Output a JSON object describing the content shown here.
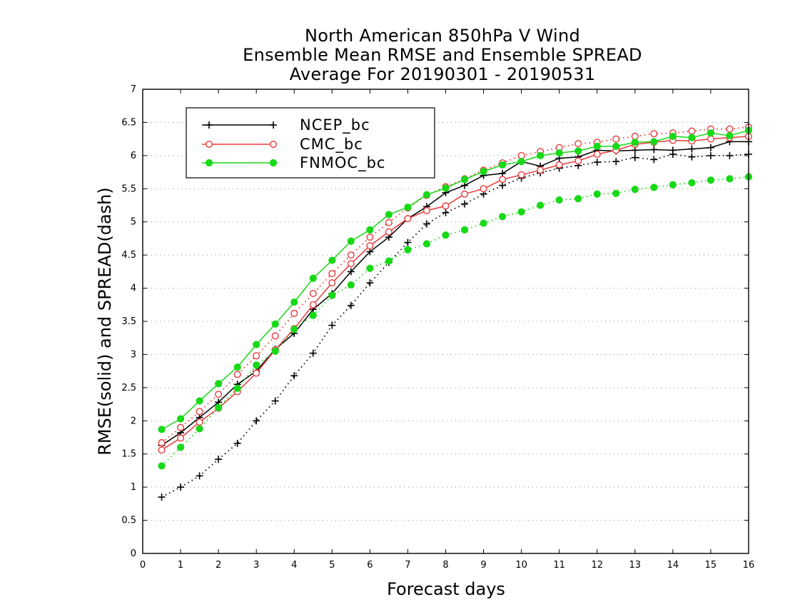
{
  "chart_data": {
    "type": "line",
    "title": [
      "North American 850hPa V Wind",
      "Ensemble Mean RMSE and Ensemble SPREAD",
      "Average For 20190301 - 20190531"
    ],
    "xlabel": "Forecast days",
    "ylabel": "RMSE(solid) and SPREAD(dash)",
    "xlim": [
      0,
      16
    ],
    "ylim": [
      0,
      7
    ],
    "x_ticks": [
      0,
      1,
      2,
      3,
      4,
      5,
      6,
      7,
      8,
      9,
      10,
      11,
      12,
      13,
      14,
      15,
      16
    ],
    "x_tick_labels": [
      "0",
      "1",
      "2",
      "3",
      "4",
      "5",
      "6",
      "7",
      "8",
      "9",
      "10",
      "11",
      "12",
      "13",
      "14",
      "15",
      "16"
    ],
    "y_ticks": [
      0,
      0.5,
      1,
      1.5,
      2,
      2.5,
      3,
      3.5,
      4,
      4.5,
      5,
      5.5,
      6,
      6.5,
      7
    ],
    "y_tick_labels": [
      "0",
      "0.5",
      "1",
      "1.5",
      "2",
      "2.5",
      "3",
      "3.5",
      "4",
      "4.5",
      "5",
      "5.5",
      "6",
      "6.5",
      "7"
    ],
    "grid": "horizontal dotted",
    "legend_position": "top-left",
    "x": [
      0.5,
      1,
      1.5,
      2,
      2.5,
      3,
      3.5,
      4,
      4.5,
      5,
      5.5,
      6,
      6.5,
      7,
      7.5,
      8,
      8.5,
      9,
      9.5,
      10,
      10.5,
      11,
      11.5,
      12,
      12.5,
      13,
      13.5,
      14,
      14.5,
      15,
      15.5,
      16
    ],
    "series": [
      {
        "name": "NCEP_bc",
        "color": "#000000",
        "marker": "plus",
        "rmse": [
          1.63,
          1.82,
          2.05,
          2.28,
          2.55,
          2.75,
          3.08,
          3.32,
          3.68,
          3.92,
          4.25,
          4.55,
          4.77,
          5.05,
          5.23,
          5.44,
          5.55,
          5.7,
          5.73,
          5.91,
          5.84,
          5.96,
          5.98,
          6.08,
          6.07,
          6.08,
          6.09,
          6.08,
          6.1,
          6.12,
          6.21,
          6.21
        ],
        "spread": [
          0.85,
          1.0,
          1.17,
          1.42,
          1.66,
          2.0,
          2.3,
          2.68,
          3.02,
          3.44,
          3.74,
          4.08,
          4.39,
          4.69,
          4.97,
          5.14,
          5.27,
          5.42,
          5.55,
          5.66,
          5.74,
          5.81,
          5.85,
          5.9,
          5.91,
          5.97,
          5.94,
          6.02,
          5.98,
          6.0,
          6.0,
          6.02
        ]
      },
      {
        "name": "CMC_bc",
        "color": "#e8393a",
        "marker": "open-circle",
        "rmse": [
          1.56,
          1.74,
          1.98,
          2.19,
          2.44,
          2.72,
          3.07,
          3.39,
          3.75,
          4.08,
          4.37,
          4.64,
          4.85,
          5.05,
          5.17,
          5.24,
          5.42,
          5.5,
          5.64,
          5.71,
          5.78,
          5.86,
          5.92,
          6.02,
          6.08,
          6.17,
          6.2,
          6.23,
          6.22,
          6.25,
          6.27,
          6.29
        ],
        "spread": [
          1.67,
          1.9,
          2.14,
          2.4,
          2.7,
          2.98,
          3.28,
          3.62,
          3.92,
          4.22,
          4.5,
          4.77,
          4.99,
          5.21,
          5.4,
          5.53,
          5.65,
          5.78,
          5.89,
          6.0,
          6.06,
          6.12,
          6.18,
          6.2,
          6.25,
          6.29,
          6.33,
          6.34,
          6.37,
          6.4,
          6.4,
          6.43
        ]
      },
      {
        "name": "FNMOC_bc",
        "color": "#18d918",
        "marker": "filled-circle",
        "rmse": [
          1.87,
          2.03,
          2.3,
          2.56,
          2.81,
          3.15,
          3.46,
          3.79,
          4.15,
          4.42,
          4.71,
          4.88,
          5.11,
          5.22,
          5.41,
          5.51,
          5.64,
          5.76,
          5.86,
          5.91,
          6.0,
          6.04,
          6.07,
          6.14,
          6.14,
          6.2,
          6.21,
          6.29,
          6.27,
          6.34,
          6.3,
          6.38
        ],
        "spread": [
          1.32,
          1.6,
          1.88,
          2.2,
          2.49,
          2.84,
          3.05,
          3.38,
          3.59,
          3.89,
          4.05,
          4.3,
          4.41,
          4.58,
          4.67,
          4.8,
          4.88,
          4.98,
          5.08,
          5.15,
          5.25,
          5.33,
          5.35,
          5.42,
          5.43,
          5.49,
          5.52,
          5.56,
          5.59,
          5.63,
          5.65,
          5.68
        ]
      }
    ]
  }
}
